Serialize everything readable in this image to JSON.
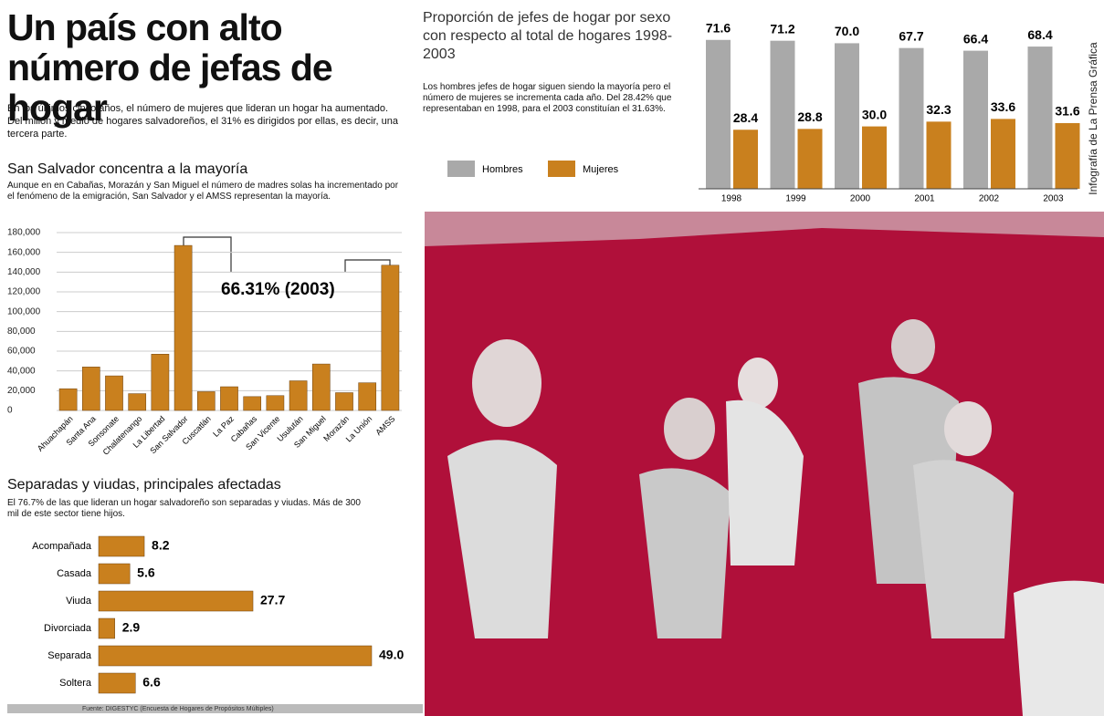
{
  "header": {
    "title": "Un país con alto número de jefas de hogar",
    "intro": "En los últimos cinco años, el número de mujeres que lideran un hogar ha aumentado. Del millón y medio de hogares salvadoreños, el 31% es dirigidos por ellas, es decir, una tercera parte."
  },
  "chart_data": [
    {
      "type": "bar",
      "title": "San Salvador concentra a la mayoría",
      "subtitle": "Aunque en en Cabañas, Morazán y San Miguel el número de madres solas ha incrementado por el fenómeno de la emigración, San Salvador y el AMSS representan la mayoría.",
      "categories": [
        "Ahuachapán",
        "Santa Ana",
        "Sonsonate",
        "Chalatenango",
        "La Libertad",
        "San Salvador",
        "Cuscatlán",
        "La Paz",
        "Cabañas",
        "San Vicente",
        "Usulután",
        "San Miguel",
        "Morazán",
        "La Unión",
        "AMSS"
      ],
      "values": [
        22000,
        44000,
        35000,
        17000,
        57000,
        167000,
        19000,
        24000,
        14000,
        15000,
        30000,
        47000,
        18000,
        28000,
        147000
      ],
      "color": "#c9801e",
      "ylim": [
        0,
        180000
      ],
      "yticks": [
        0,
        {
          "value": 20000,
          "label": "20,000"
        },
        {
          "value": 40000,
          "label": "40,000"
        },
        {
          "value": 60000,
          "label": "60,000"
        },
        {
          "value": 80000,
          "label": "80,000"
        },
        {
          "value": 100000,
          "label": "100,000"
        },
        {
          "value": 120000,
          "label": "120,000"
        },
        {
          "value": 140000,
          "label": "140,000"
        },
        {
          "value": 160000,
          "label": "160,000"
        },
        {
          "value": 180000,
          "label": "180,000"
        }
      ],
      "grid": true,
      "annotation": "66.31% (2003)"
    },
    {
      "type": "hbar",
      "title": "Separadas y viudas, principales afectadas",
      "subtitle": "El 76.7% de las que lideran un hogar salvadoreño son separadas y viudas. Más de 300 mil de este sector tiene hijos.",
      "categories": [
        "Acompañada",
        "Casada",
        "Viuda",
        "Divorciada",
        "Separada",
        "Soltera"
      ],
      "values": [
        8.2,
        5.6,
        27.7,
        2.9,
        49.0,
        6.6
      ],
      "value_labels": [
        "8.2",
        "5.6",
        "27.7",
        "2.9",
        "49.0",
        "6.6"
      ],
      "color": "#c9801e"
    },
    {
      "type": "grouped-bar",
      "title": "Proporción de jefes de hogar por sexo con respecto al total de hogares 1998- 2003",
      "subtitle": "Los hombres jefes de hogar siguen siendo la mayoría pero el número de mujeres se incrementa cada año. Del 28.42% que representaban en 1998, para el 2003 constituían el 31.63%.",
      "categories": [
        "1998",
        "1999",
        "2000",
        "2001",
        "2002",
        "2003"
      ],
      "series": [
        {
          "name": "Hombres",
          "color": "#a9a9a9",
          "values": [
            71.6,
            71.2,
            70.0,
            67.7,
            66.4,
            68.4
          ],
          "value_labels": [
            "71.6",
            "71.2",
            "70.0",
            "67.7",
            "66.4",
            "68.4"
          ]
        },
        {
          "name": "Mujeres",
          "color": "#c9801e",
          "values": [
            28.4,
            28.8,
            30.0,
            32.3,
            33.6,
            31.6
          ],
          "value_labels": [
            "28.4",
            "28.8",
            "30.0",
            "32.3",
            "33.6",
            "31.6"
          ]
        }
      ]
    }
  ],
  "credit": "Infografía de La Prensa Gráfica",
  "source": "Fuente: DIGESTYC (Encuesta de Hogares de Propósitos Múltiples)"
}
